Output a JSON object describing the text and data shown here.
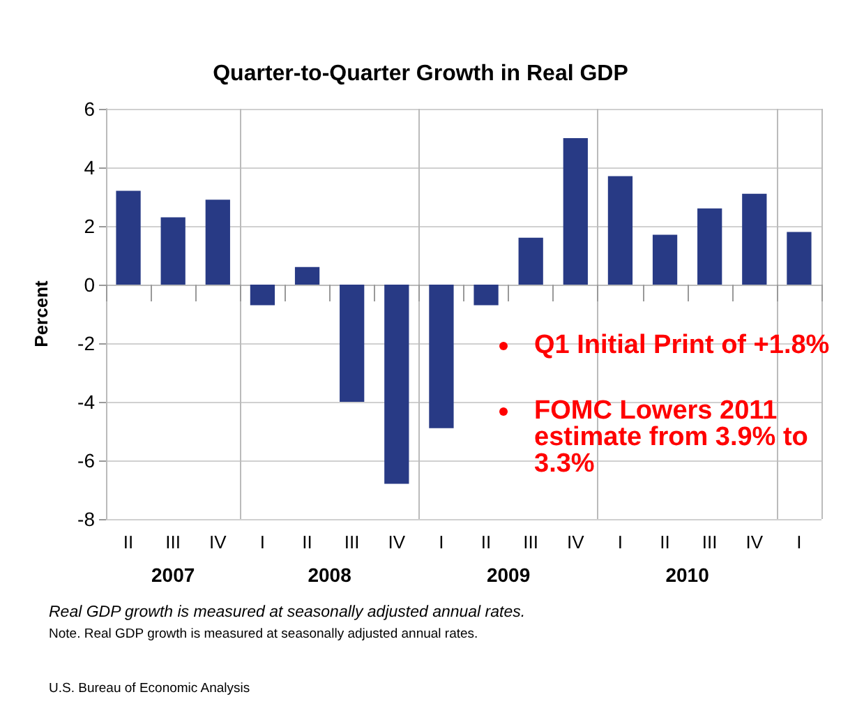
{
  "chart_data": {
    "type": "bar",
    "title": "Quarter-to-Quarter Growth in Real GDP",
    "ylabel": "Percent",
    "categories": [
      "II",
      "III",
      "IV",
      "I",
      "II",
      "III",
      "IV",
      "I",
      "II",
      "III",
      "IV",
      "I",
      "II",
      "III",
      "IV",
      "I"
    ],
    "values": [
      3.2,
      2.3,
      2.9,
      -0.7,
      0.6,
      -4.0,
      -6.8,
      -4.9,
      -0.7,
      1.6,
      5.0,
      3.7,
      1.7,
      2.6,
      3.1,
      1.8
    ],
    "color": "#283a85",
    "ylim": [
      -8,
      6
    ],
    "yticks": [
      -8,
      -6,
      -4,
      -2,
      0,
      2,
      4,
      6
    ],
    "grid": true,
    "annotations": [
      "2007",
      "2008",
      "2009",
      "2010",
      "Q1 Initial Print of +1.8%",
      "FOMC Lowers 2011 estimate from 3.9% to 3.3%",
      "Real GDP growth is measured at seasonally adjusted annual rates.",
      "Note.  Real GDP growth is measured at seasonally adjusted annual rates.",
      "U.S. Bureau of Economic Analysis"
    ]
  }
}
